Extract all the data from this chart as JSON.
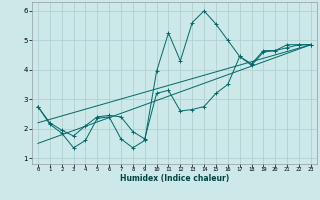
{
  "xlabel": "Humidex (Indice chaleur)",
  "ylabel": "",
  "xlim": [
    -0.5,
    23.5
  ],
  "ylim": [
    0.8,
    6.3
  ],
  "xticks": [
    0,
    1,
    2,
    3,
    4,
    5,
    6,
    7,
    8,
    9,
    10,
    11,
    12,
    13,
    14,
    15,
    16,
    17,
    18,
    19,
    20,
    21,
    22,
    23
  ],
  "yticks": [
    1,
    2,
    3,
    4,
    5,
    6
  ],
  "background_color": "#cce8e8",
  "grid_color": "#aacece",
  "line_color": "#006868",
  "series": [
    {
      "x": [
        0,
        1,
        2,
        3,
        4,
        5,
        6,
        7,
        8,
        9,
        10,
        11,
        12,
        13,
        14,
        15,
        16,
        17,
        18,
        19,
        20,
        21,
        22,
        23
      ],
      "y": [
        2.75,
        2.15,
        1.85,
        1.35,
        1.6,
        2.35,
        2.4,
        1.65,
        1.35,
        1.6,
        3.95,
        5.25,
        4.3,
        5.6,
        6.0,
        5.55,
        5.0,
        4.45,
        4.2,
        4.65,
        4.65,
        4.85,
        4.85,
        4.85
      ],
      "has_markers": true
    },
    {
      "x": [
        0,
        1,
        2,
        3,
        4,
        5,
        6,
        7,
        8,
        9,
        10,
        11,
        12,
        13,
        14,
        15,
        16,
        17,
        18,
        19,
        20,
        21,
        22,
        23
      ],
      "y": [
        2.75,
        2.2,
        1.95,
        1.75,
        2.1,
        2.4,
        2.45,
        2.4,
        1.9,
        1.65,
        3.2,
        3.3,
        2.6,
        2.65,
        2.75,
        3.2,
        3.5,
        4.45,
        4.15,
        4.6,
        4.65,
        4.75,
        4.85,
        4.85
      ],
      "has_markers": true
    },
    {
      "x": [
        0,
        23
      ],
      "y": [
        2.2,
        4.85
      ],
      "has_markers": false
    },
    {
      "x": [
        0,
        23
      ],
      "y": [
        1.5,
        4.85
      ],
      "has_markers": false
    }
  ]
}
